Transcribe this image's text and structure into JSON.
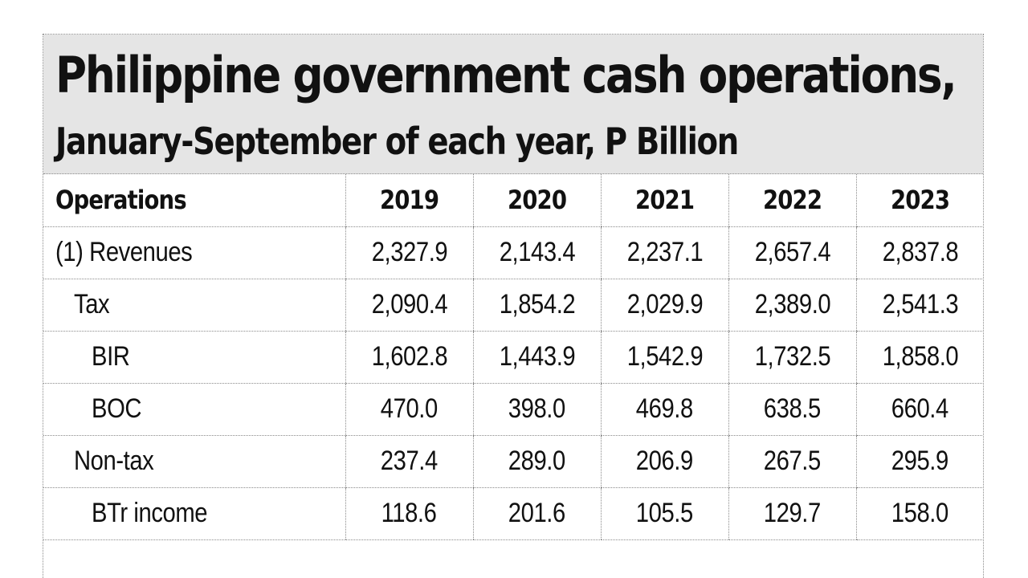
{
  "chart_data": {
    "type": "table",
    "title": "Philippine government cash operations,",
    "subtitle": "January-September of each year, P Billion",
    "columns": [
      "Operations",
      "2019",
      "2020",
      "2021",
      "2022",
      "2023"
    ],
    "rows": [
      {
        "label": "(1) Revenues",
        "level": 0,
        "values": [
          "2,327.9",
          "2,143.4",
          "2,237.1",
          "2,657.4",
          "2,837.8"
        ]
      },
      {
        "label": "Tax",
        "level": 1,
        "values": [
          "2,090.4",
          "1,854.2",
          "2,029.9",
          "2,389.0",
          "2,541.3"
        ]
      },
      {
        "label": "BIR",
        "level": 2,
        "values": [
          "1,602.8",
          "1,443.9",
          "1,542.9",
          "1,732.5",
          "1,858.0"
        ]
      },
      {
        "label": "BOC",
        "level": 2,
        "values": [
          "470.0",
          "398.0",
          "469.8",
          "638.5",
          "660.4"
        ]
      },
      {
        "label": "Non-tax",
        "level": 1,
        "values": [
          "237.4",
          "289.0",
          "206.9",
          "267.5",
          "295.9"
        ]
      },
      {
        "label": "BTr income",
        "level": 2,
        "values": [
          "118.6",
          "201.6",
          "105.5",
          "129.7",
          "158.0"
        ]
      }
    ]
  }
}
